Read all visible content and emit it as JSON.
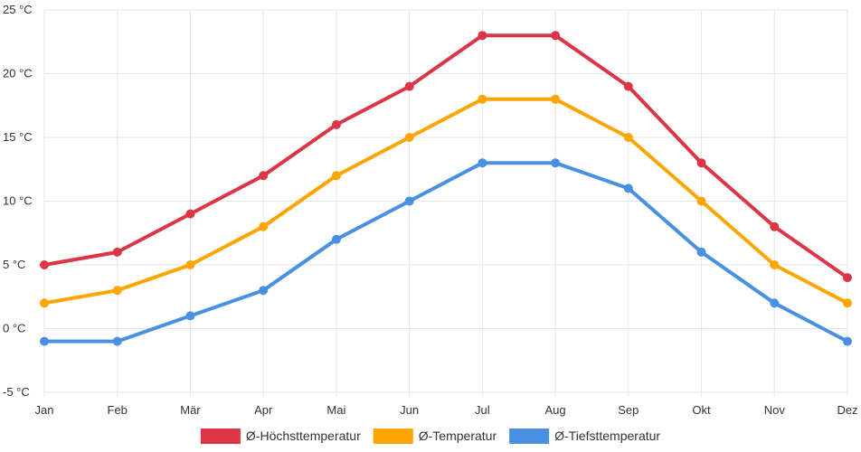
{
  "chart_data": {
    "type": "line",
    "title": "",
    "xlabel": "",
    "ylabel": "",
    "categories": [
      "Jan",
      "Feb",
      "Mär",
      "Apr",
      "Mai",
      "Jun",
      "Jul",
      "Aug",
      "Sep",
      "Okt",
      "Nov",
      "Dez"
    ],
    "ylim": [
      -5,
      25
    ],
    "y_ticks": [
      -5,
      0,
      5,
      10,
      15,
      20,
      25
    ],
    "y_tick_labels": [
      "-5 °C",
      "0 °C",
      "5 °C",
      "10 °C",
      "15 °C",
      "20 °C",
      "25 °C"
    ],
    "grid": true,
    "legend_position": "bottom",
    "series": [
      {
        "name": "Ø-Höchsttemperatur",
        "color": "#dc3545",
        "values": [
          5,
          6,
          9,
          12,
          16,
          19,
          23,
          23,
          19,
          13,
          8,
          4
        ]
      },
      {
        "name": "Ø-Temperatur",
        "color": "#ffa500",
        "values": [
          2,
          3,
          5,
          8,
          12,
          15,
          18,
          18,
          15,
          10,
          5,
          2
        ]
      },
      {
        "name": "Ø-Tiefsttemperatur",
        "color": "#4a90e2",
        "values": [
          -1,
          -1,
          1,
          3,
          7,
          10,
          13,
          13,
          11,
          6,
          2,
          -1
        ]
      }
    ]
  }
}
